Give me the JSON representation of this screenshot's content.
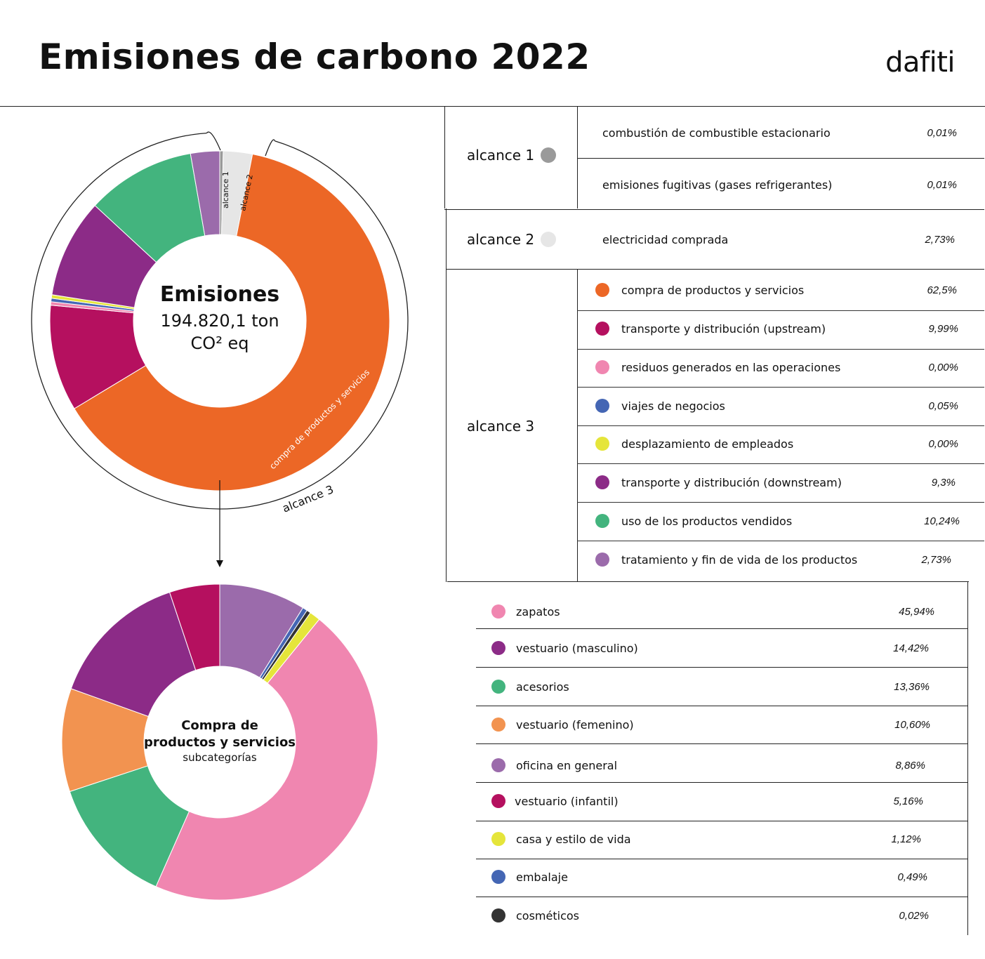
{
  "header": {
    "title": "Emisiones de carbono 2022",
    "brand": "dafiti"
  },
  "emissions_center": {
    "title": "Emisiones",
    "value": "194.820,1 ton",
    "unit": "CO² eq"
  },
  "subcat_center": {
    "title_line1": "Compra de",
    "title_line2": "productos y servicios",
    "subtitle": "subcategorías"
  },
  "donut_labels": {
    "alcance1": "alcance 1",
    "alcance2": "alcance 2",
    "alcance3": "alcance 3",
    "compra": "compra de productos y servicios"
  },
  "scopes": [
    {
      "label": "alcance 1",
      "color": "#9a9a9a"
    },
    {
      "label": "alcance 2",
      "color": "#e6e6e6"
    },
    {
      "label": "alcance 3",
      "color": ""
    }
  ],
  "scope1_rows": [
    {
      "label": "combustión de combustible estacionario",
      "value": "0,01%"
    },
    {
      "label": "emisiones fugitivas (gases refrigerantes)",
      "value": "0,01%"
    }
  ],
  "scope2_rows": [
    {
      "label": "electricidad comprada",
      "value": "2,73%"
    }
  ],
  "scope3_rows": [
    {
      "label": "compra de productos y servicios",
      "value": "62,5%",
      "color": "#ec6726"
    },
    {
      "label": "transporte y distribución (upstream)",
      "value": "9,99%",
      "color": "#b5105f"
    },
    {
      "label": "residuos generados en las operaciones",
      "value": "0,00%",
      "color": "#f086b0"
    },
    {
      "label": "viajes de negocios",
      "value": "0,05%",
      "color": "#4466b4"
    },
    {
      "label": "desplazamiento de empleados",
      "value": "0,00%",
      "color": "#e5e53a"
    },
    {
      "label": "transporte y distribución (downstream)",
      "value": "9,3%",
      "color": "#8c2b87"
    },
    {
      "label": "uso de los productos vendidos",
      "value": "10,24%",
      "color": "#43b47e"
    },
    {
      "label": "tratamiento y fin de vida de los productos",
      "value": "2,73%",
      "color": "#9b6bab"
    }
  ],
  "subcat_rows": [
    {
      "label": "zapatos",
      "value": "45,94%",
      "color": "#f086b0"
    },
    {
      "label": "vestuario (masculino)",
      "value": "14,42%",
      "color": "#8c2b87"
    },
    {
      "label": "acesorios",
      "value": "13,36%",
      "color": "#43b47e"
    },
    {
      "label": "vestuario (femenino)",
      "value": "10,60%",
      "color": "#f29350"
    },
    {
      "label": "oficina en general",
      "value": "8,86%",
      "color": "#9b6bab"
    },
    {
      "label": "vestuario (infantil)",
      "value": "5,16%",
      "color": "#b5105f"
    },
    {
      "label": "casa y estilo de vida",
      "value": "1,12%",
      "color": "#e5e53a"
    },
    {
      "label": "embalaje",
      "value": "0,49%",
      "color": "#4466b4"
    },
    {
      "label": "cosméticos",
      "value": "0,02%",
      "color": "#333333"
    }
  ],
  "chart_data": [
    {
      "type": "pie",
      "title": "Emisiones",
      "series": [
        {
          "name": "alcance 1",
          "value": 0.02,
          "color": "#9a9a9a"
        },
        {
          "name": "alcance 2",
          "value": 2.73,
          "color": "#e6e6e6"
        },
        {
          "name": "compra de productos y servicios",
          "value": 62.5,
          "color": "#ec6726"
        },
        {
          "name": "transporte y distribución (upstream)",
          "value": 9.99,
          "color": "#b5105f"
        },
        {
          "name": "residuos generados en las operaciones",
          "value": 0.0,
          "color": "#f086b0"
        },
        {
          "name": "viajes de negocios",
          "value": 0.05,
          "color": "#4466b4"
        },
        {
          "name": "desplazamiento de empleados",
          "value": 0.0,
          "color": "#e5e53a"
        },
        {
          "name": "transporte y distribución (downstream)",
          "value": 9.3,
          "color": "#8c2b87"
        },
        {
          "name": "uso de los productos vendidos",
          "value": 10.24,
          "color": "#43b47e"
        },
        {
          "name": "tratamiento y fin de vida de los productos",
          "value": 2.73,
          "color": "#9b6bab"
        }
      ]
    },
    {
      "type": "pie",
      "title": "Compra de productos y servicios",
      "series": [
        {
          "name": "oficina en general",
          "value": 8.86,
          "color": "#9b6bab"
        },
        {
          "name": "embalaje",
          "value": 0.49,
          "color": "#4466b4"
        },
        {
          "name": "cosméticos",
          "value": 0.02,
          "color": "#333333"
        },
        {
          "name": "casa y estilo de vida",
          "value": 1.12,
          "color": "#e5e53a"
        },
        {
          "name": "zapatos",
          "value": 45.94,
          "color": "#f086b0"
        },
        {
          "name": "acesorios",
          "value": 13.36,
          "color": "#43b47e"
        },
        {
          "name": "vestuario (femenino)",
          "value": 10.6,
          "color": "#f29350"
        },
        {
          "name": "vestuario (masculino)",
          "value": 14.42,
          "color": "#8c2b87"
        },
        {
          "name": "vestuario (infantil)",
          "value": 5.16,
          "color": "#b5105f"
        }
      ]
    }
  ]
}
